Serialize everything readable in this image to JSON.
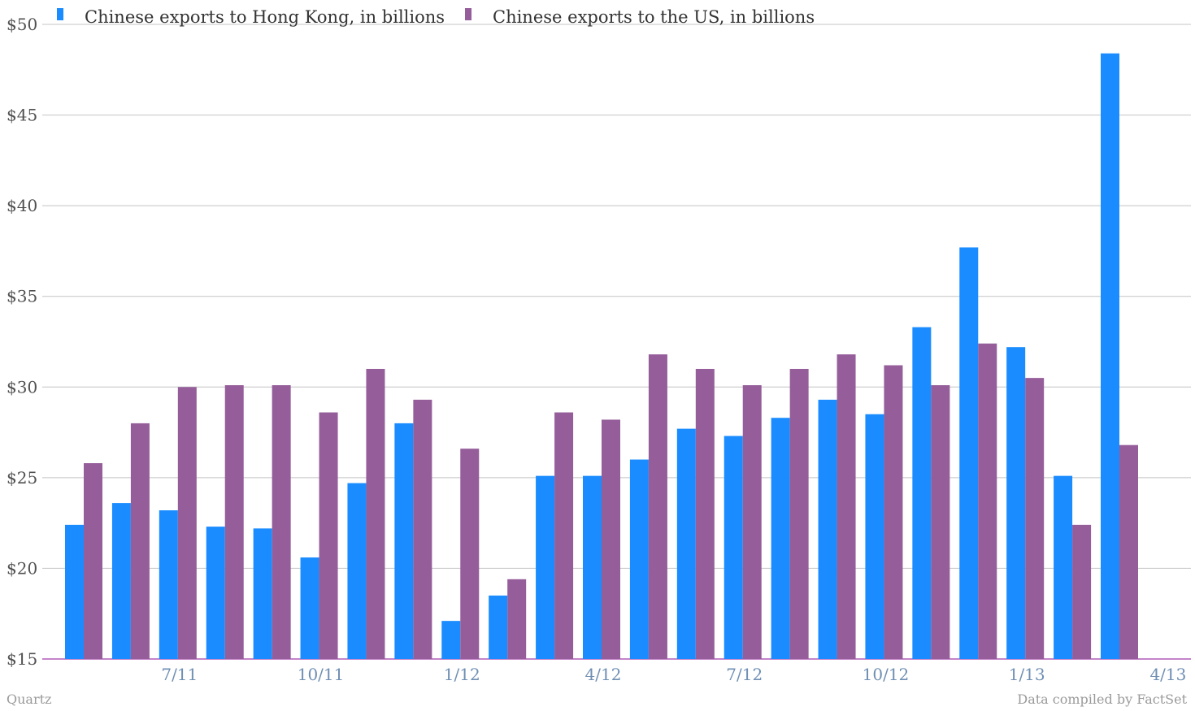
{
  "chart_data": {
    "type": "bar",
    "categories": [
      "5/11",
      "6/11",
      "7/11",
      "8/11",
      "9/11",
      "10/11",
      "11/11",
      "12/11",
      "1/12",
      "2/12",
      "3/12",
      "4/12",
      "5/12",
      "6/12",
      "7/12",
      "8/12",
      "9/12",
      "10/12",
      "11/12",
      "12/12",
      "1/13",
      "2/13",
      "3/13",
      "4/13"
    ],
    "tick_labels": [
      "7/11",
      "10/11",
      "1/12",
      "4/12",
      "7/12",
      "10/12",
      "1/13",
      "4/13"
    ],
    "series": [
      {
        "name": "Chinese exports to Hong Kong, in billions",
        "color": "#1a8cff",
        "values": [
          22.4,
          23.6,
          23.2,
          22.3,
          22.2,
          20.6,
          24.7,
          28.0,
          17.1,
          18.5,
          25.1,
          25.1,
          26.0,
          27.7,
          27.3,
          28.3,
          29.3,
          28.5,
          33.3,
          37.7,
          32.2,
          25.1,
          48.4,
          null
        ]
      },
      {
        "name": "Chinese exports to the US, in billions",
        "color": "#955e9a",
        "values": [
          25.8,
          28.0,
          30.0,
          30.1,
          30.1,
          28.6,
          31.0,
          29.3,
          26.6,
          19.4,
          28.6,
          28.2,
          31.8,
          31.0,
          30.1,
          31.0,
          31.8,
          31.2,
          30.1,
          32.4,
          30.5,
          22.4,
          26.8,
          null
        ]
      }
    ],
    "ylim": [
      15,
      50
    ],
    "yticks": [
      15,
      20,
      25,
      30,
      35,
      40,
      45,
      50
    ],
    "ytick_labels": [
      "$15",
      "$20",
      "$25",
      "$30",
      "$35",
      "$40",
      "$45",
      "$50"
    ],
    "grid": true,
    "legend_position": "top-left"
  },
  "footer": {
    "source_left": "Quartz",
    "source_right": "Data compiled by FactSet"
  }
}
